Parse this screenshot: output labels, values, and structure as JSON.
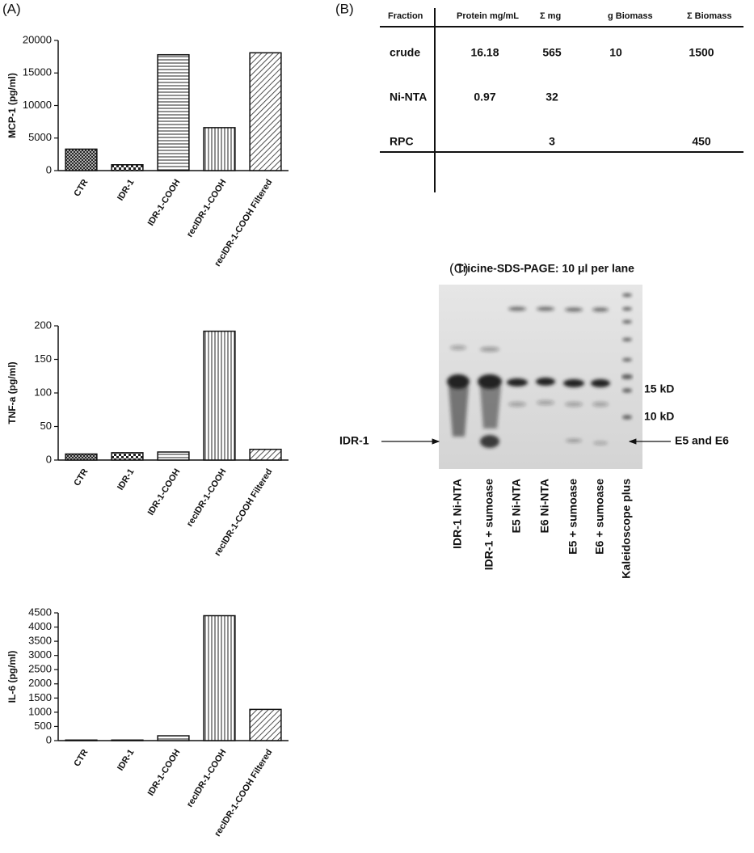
{
  "panels": {
    "a": "(A)",
    "b": "(B)",
    "c": "(C)"
  },
  "chart_data": [
    {
      "type": "bar",
      "ylabel": "MCP-1 (pg/ml)",
      "categories": [
        "CTR",
        "IDR-1",
        "IDR-1-COOH",
        "recIDR-1-COOH",
        "recIDR-1-COOH Filtered"
      ],
      "values": [
        3300,
        900,
        17800,
        6600,
        18100
      ],
      "ylim": [
        0,
        20000
      ],
      "yticks": [
        0,
        5000,
        10000,
        15000,
        20000
      ]
    },
    {
      "type": "bar",
      "ylabel": "TNF-a (pg/ml)",
      "categories": [
        "CTR",
        "IDR-1",
        "IDR-1-COOH",
        "recIDR-1-COOH",
        "recIDR-1-COOH Filtered"
      ],
      "values": [
        9,
        11,
        12,
        192,
        16
      ],
      "ylim": [
        0,
        200
      ],
      "yticks": [
        0,
        50,
        100,
        150,
        200
      ]
    },
    {
      "type": "bar",
      "ylabel": "IL-6 (pg/ml)",
      "categories": [
        "CTR",
        "IDR-1",
        "IDR-1-COOH",
        "recIDR-1-COOH",
        "recIDR-1-COOH Filtered"
      ],
      "values": [
        20,
        20,
        170,
        4400,
        1100
      ],
      "ylim": [
        0,
        4500
      ],
      "yticks": [
        0,
        500,
        1000,
        1500,
        2000,
        2500,
        3000,
        3500,
        4000,
        4500
      ]
    }
  ],
  "table": {
    "header": [
      "Fraction",
      "Protein mg/mL",
      "Σ mg",
      "g Biomass",
      "Σ Biomass"
    ],
    "rows": [
      [
        "crude",
        "16.18",
        "565",
        "10",
        "1500"
      ],
      [
        "Ni-NTA",
        "0.97",
        "32",
        null,
        null
      ],
      [
        "RPC",
        null,
        "3",
        null,
        "450"
      ]
    ]
  },
  "gel": {
    "title": "Tricine-SDS-PAGE: 10 μl per lane",
    "lanes": [
      "IDR-1 Ni-NTA",
      "IDR-1 + sumoase",
      "E5 Ni-NTA",
      "E6 Ni-NTA",
      "E5 + sumoase",
      "E6 + sumoase",
      "Kaleidoscope plus"
    ],
    "markers": [
      "15 kD",
      "10 kD"
    ],
    "arrow_left": "IDR-1",
    "arrow_right": "E5 and E6"
  }
}
